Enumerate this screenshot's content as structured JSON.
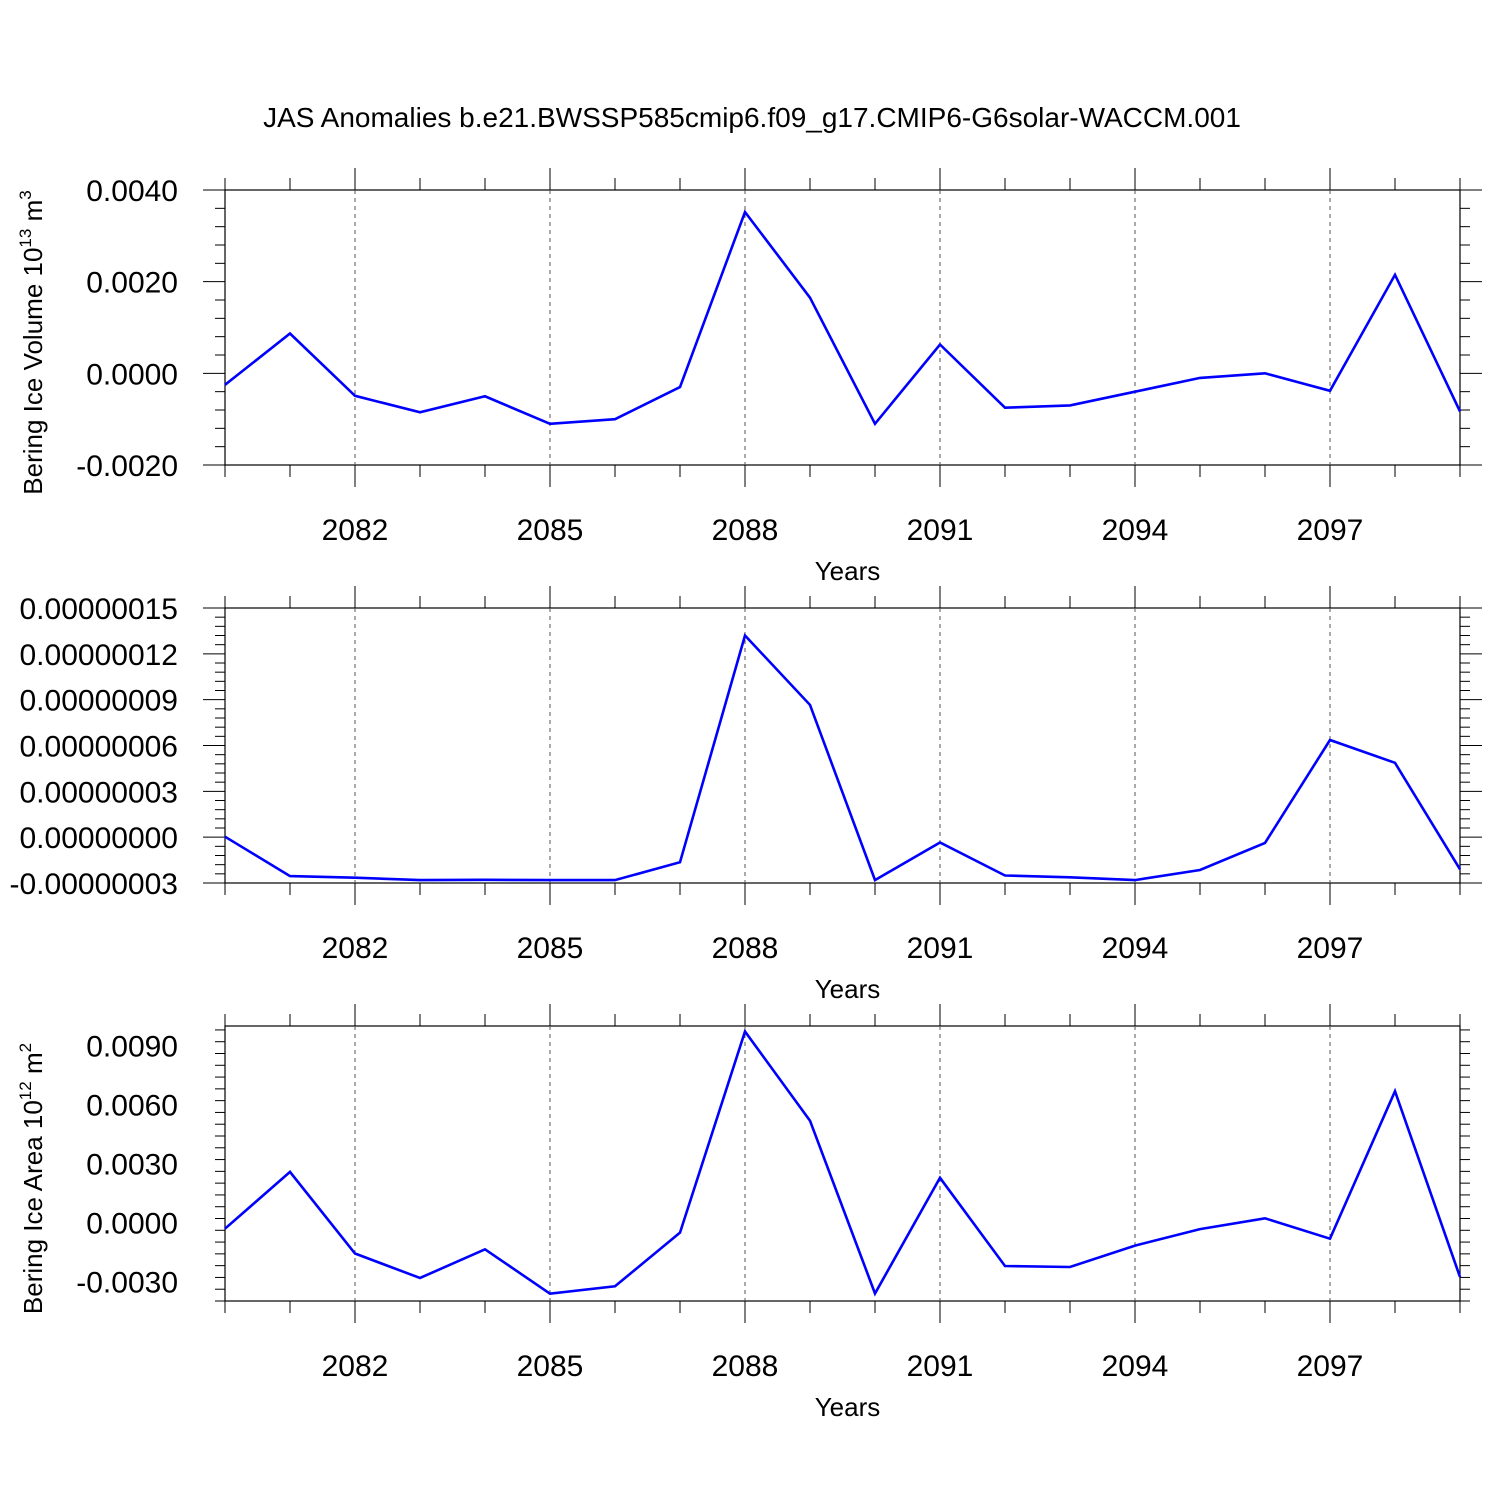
{
  "title": "JAS Anomalies b.e21.BWSSP585cmip6.f09_g17.CMIP6-G6solar-WACCM.001",
  "chart_data": [
    {
      "type": "line",
      "xlabel": "Years",
      "ylabel": "Bering Ice Volume 10",
      "ylabel_exp": "13",
      "ylabel_unit": "m",
      "ylabel_unit_exp": "3",
      "x": [
        2080,
        2081,
        2082,
        2083,
        2084,
        2085,
        2086,
        2087,
        2088,
        2089,
        2090,
        2091,
        2092,
        2093,
        2094,
        2095,
        2096,
        2097,
        2098,
        2099
      ],
      "xlim": [
        2080,
        2099
      ],
      "xticks": [
        "2082",
        "2085",
        "2088",
        "2091",
        "2094",
        "2097"
      ],
      "ylim": [
        -0.002,
        0.004
      ],
      "yticks": [
        "-0.0020",
        "0.0000",
        "0.0020",
        "0.0040"
      ],
      "series": [
        {
          "values": [
            -0.00025,
            0.00087,
            -0.00049,
            -0.00085,
            -0.0005,
            -0.0011,
            -0.001,
            -0.0003,
            0.00352,
            0.00165,
            -0.0011,
            0.00063,
            -0.00075,
            -0.0007,
            -0.0004,
            -0.0001,
            0.0,
            -0.00038,
            0.00215,
            -0.00083
          ],
          "color": "#0000ff"
        }
      ]
    },
    {
      "type": "line",
      "xlabel": "Years",
      "ylabel": "",
      "x": [
        2080,
        2081,
        2082,
        2083,
        2084,
        2085,
        2086,
        2087,
        2088,
        2089,
        2090,
        2091,
        2092,
        2093,
        2094,
        2095,
        2096,
        2097,
        2098,
        2099
      ],
      "xlim": [
        2080,
        2099
      ],
      "xticks": [
        "2082",
        "2085",
        "2088",
        "2091",
        "2094",
        "2097"
      ],
      "ylim": [
        -3e-08,
        1.5e-07
      ],
      "yticks": [
        "-0.00000003",
        "0.00000000",
        "0.00000003",
        "0.00000006",
        "0.00000009",
        "0.00000012",
        "0.00000015"
      ],
      "series": [
        {
          "values": [
            3e-10,
            -2.55e-08,
            -2.65e-08,
            -2.81e-08,
            -2.79e-08,
            -2.81e-08,
            -2.81e-08,
            -1.64e-08,
            1.32e-07,
            8.66e-08,
            -2.81e-08,
            -3.5e-09,
            -2.51e-08,
            -2.63e-08,
            -2.81e-08,
            -2.15e-08,
            -3.8e-09,
            6.36e-08,
            4.87e-08,
            -2.1e-08
          ],
          "color": "#0000ff"
        }
      ]
    },
    {
      "type": "line",
      "xlabel": "Years",
      "ylabel": "Bering Ice Area 10",
      "ylabel_exp": "12",
      "ylabel_unit": "m",
      "ylabel_unit_exp": "2",
      "x": [
        2080,
        2081,
        2082,
        2083,
        2084,
        2085,
        2086,
        2087,
        2088,
        2089,
        2090,
        2091,
        2092,
        2093,
        2094,
        2095,
        2096,
        2097,
        2098,
        2099
      ],
      "xlim": [
        2080,
        2099
      ],
      "xticks": [
        "2082",
        "2085",
        "2088",
        "2091",
        "2094",
        "2097"
      ],
      "ylim": [
        -0.004,
        0.01
      ],
      "yticks": [
        "-0.0030",
        "0.0000",
        "0.0030",
        "0.0060",
        "0.0090"
      ],
      "series": [
        {
          "values": [
            -0.00032,
            0.00257,
            -0.00158,
            -0.00283,
            -0.00137,
            -0.00363,
            -0.00325,
            -0.00052,
            0.00972,
            0.00518,
            -0.00362,
            0.00227,
            -0.00222,
            -0.00227,
            -0.00118,
            -0.00034,
            0.00021,
            -0.00083,
            0.00668,
            -0.00278
          ],
          "color": "#0000ff"
        }
      ]
    }
  ]
}
